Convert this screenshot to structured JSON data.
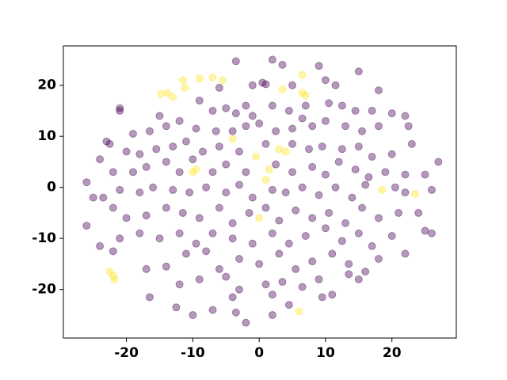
{
  "chart_data": {
    "type": "scatter",
    "xlim": [
      -29.5,
      29.7
    ],
    "ylim": [
      -29.5,
      27.7
    ],
    "xticks": [
      -20,
      -10,
      0,
      10,
      20
    ],
    "yticks": [
      -20,
      -10,
      0,
      10,
      20
    ],
    "series": [
      {
        "color": "#440154",
        "x": [
          -3.5,
          2,
          3.5,
          9,
          15,
          0.5,
          1,
          -6,
          10,
          11.5,
          -1,
          5,
          18,
          -21,
          -21,
          -15,
          -9,
          -7,
          -3.5,
          -5,
          -2,
          2,
          4.5,
          7,
          10.5,
          12.5,
          14.5,
          17,
          20,
          22,
          6.5,
          -1,
          -19,
          -16.5,
          -14,
          -12,
          -9.5,
          -6.5,
          -4,
          -2,
          0,
          2.5,
          5,
          8,
          10,
          13,
          15.5,
          18,
          22.5,
          -23,
          -22.5,
          -24,
          -20,
          -18,
          -15.5,
          -13,
          -11,
          -8.5,
          -6,
          -3,
          1,
          5,
          7.5,
          9.5,
          12.5,
          15,
          17,
          20,
          23,
          -26,
          -22,
          -19,
          -17,
          -14,
          -12,
          -10,
          -7,
          -5,
          -2,
          2.5,
          5,
          8,
          10,
          12,
          14.5,
          16.5,
          19,
          22,
          25,
          27,
          -25,
          -23.5,
          -21,
          -18,
          -16,
          -13,
          -10.5,
          -8,
          -5,
          -3,
          -1,
          2,
          4,
          6.5,
          9,
          11.5,
          14,
          16,
          20.5,
          22,
          26,
          -26,
          -22,
          -20,
          -17,
          -14,
          -11.5,
          -9,
          -6,
          -4,
          -1.5,
          1,
          3,
          5.5,
          8,
          10.5,
          13,
          15.5,
          18,
          21,
          24,
          25,
          -24,
          -21,
          -18,
          -15,
          -12,
          -9.5,
          -7,
          -4,
          -1,
          2,
          4.5,
          7,
          10,
          12.5,
          15,
          17,
          20,
          26,
          -22,
          -17,
          -14,
          -11,
          -8,
          -6,
          -3,
          0,
          3,
          5.5,
          8,
          11,
          13.5,
          16,
          18,
          22,
          -16.5,
          -12,
          -9,
          -5,
          -3,
          1,
          3.5,
          6.5,
          9,
          11,
          13.5,
          15,
          -4,
          2,
          9.5,
          -12.5,
          -10,
          -7,
          -3.5,
          -2,
          2,
          4.5
        ],
        "y": [
          24.7,
          25,
          24,
          23.8,
          22.7,
          20.5,
          20.2,
          19.5,
          21,
          20,
          20,
          20,
          19,
          15.5,
          15,
          14,
          17,
          15,
          14.5,
          15.5,
          16,
          16,
          15,
          16,
          16.5,
          16,
          15,
          15,
          14.5,
          14,
          13.5,
          14,
          10.5,
          11,
          12,
          13,
          11.5,
          11,
          11,
          12,
          12.5,
          11,
          11.5,
          12,
          13,
          12,
          11,
          12,
          12,
          9,
          8.5,
          5.5,
          7,
          6.5,
          7.5,
          8,
          9,
          7,
          8,
          7,
          8.5,
          8.5,
          7.5,
          8,
          7.5,
          8,
          6,
          6.5,
          8.5,
          1,
          3,
          3,
          4,
          5,
          3,
          5.5,
          3,
          4.5,
          3,
          4.5,
          3,
          4,
          2.5,
          5,
          3.5,
          2,
          3,
          2.5,
          2.5,
          5,
          -2,
          -2,
          -0.5,
          -1,
          0,
          -0.5,
          -1,
          0,
          -1,
          0.5,
          -2,
          -0.5,
          -1,
          0,
          -1.5,
          0,
          -2,
          0.5,
          0,
          -1,
          -0.5,
          -7.5,
          -4,
          -6,
          -5.5,
          -4,
          -5,
          -6,
          -4,
          -7,
          -5,
          -4,
          -6.5,
          -4.5,
          -6,
          -5,
          -7,
          -4,
          -6,
          -5,
          -5,
          -8.5,
          -11.5,
          -10,
          -9,
          -10,
          -9,
          -11,
          -9,
          -10,
          -11,
          -9,
          -11,
          -9.5,
          -8,
          -10.5,
          -9,
          -11.5,
          -9.5,
          -9,
          -12.5,
          -16,
          -15.5,
          -13,
          -12.5,
          -16,
          -14,
          -15,
          -13,
          -16,
          -14.5,
          -13,
          -15,
          -16.5,
          -14,
          -13,
          -21.5,
          -19,
          -18,
          -17.5,
          -20,
          -19,
          -18.5,
          -19.5,
          -18,
          -21,
          -17,
          -18,
          -21.5,
          -21,
          -21.5,
          -23.5,
          -25,
          -24,
          -24.5,
          -26.5,
          -25,
          -23
        ]
      },
      {
        "color": "#fde725",
        "x": [
          -14.8,
          -13.8,
          -13,
          -11.5,
          -11.2,
          -9,
          -7,
          -5.5,
          6.5,
          7,
          3.5,
          6.5,
          -9.5,
          -10,
          -0.5,
          1.5,
          1,
          0,
          18.5,
          23.5,
          6,
          -22.5,
          -22,
          -21.8,
          -4,
          3,
          4
        ],
        "y": [
          18.3,
          18.5,
          17.7,
          21,
          19.5,
          21.3,
          21.5,
          21,
          18.5,
          18,
          19.2,
          22,
          3.5,
          3,
          6,
          3.5,
          1.5,
          -6,
          -0.5,
          -1.3,
          -24.3,
          -16.5,
          -17.3,
          -18,
          9.5,
          7.5,
          7
        ]
      }
    ]
  }
}
